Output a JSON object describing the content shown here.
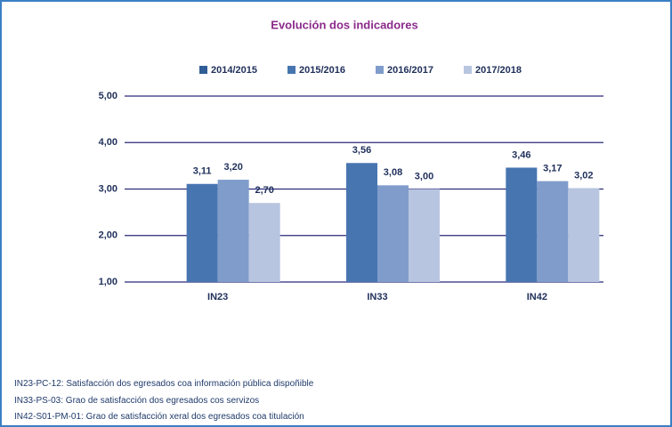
{
  "chart_data": {
    "type": "bar",
    "title": "Evolución dos indicadores",
    "categories": [
      "IN23",
      "IN33",
      "IN42"
    ],
    "series": [
      {
        "name": "2014/2015",
        "color": "#2f5d95",
        "values": [
          null,
          null,
          null
        ],
        "value_labels": [
          null,
          null,
          null
        ]
      },
      {
        "name": "2015/2016",
        "color": "#4775b0",
        "values": [
          3.11,
          3.56,
          3.46
        ],
        "value_labels": [
          "3,11",
          "3,56",
          "3,46"
        ]
      },
      {
        "name": "2016/2017",
        "color": "#7f9ccb",
        "values": [
          3.2,
          3.08,
          3.17
        ],
        "value_labels": [
          "3,20",
          "3,08",
          "3,17"
        ]
      },
      {
        "name": "2017/2018",
        "color": "#b8c5e0",
        "values": [
          2.7,
          3.0,
          3.02
        ],
        "value_labels": [
          "2,70",
          "3,00",
          "3,02"
        ]
      }
    ],
    "ylim": [
      1,
      5
    ],
    "yticks": [
      {
        "value": 1,
        "label": "1,00"
      },
      {
        "value": 2,
        "label": "2,00"
      },
      {
        "value": 3,
        "label": "3,00"
      },
      {
        "value": 4,
        "label": "4,00"
      },
      {
        "value": 5,
        "label": "5,00"
      }
    ],
    "grid": true,
    "legend": "top"
  },
  "notes": [
    "IN23-PC-12: Satisfacción dos egresados coa información pública dispoñible",
    "IN33-PS-03: Grao de satisfacción dos egresados cos servizos",
    "IN42-S01-PM-01: Grao de satisfacción xeral dos egresados coa titulación"
  ]
}
